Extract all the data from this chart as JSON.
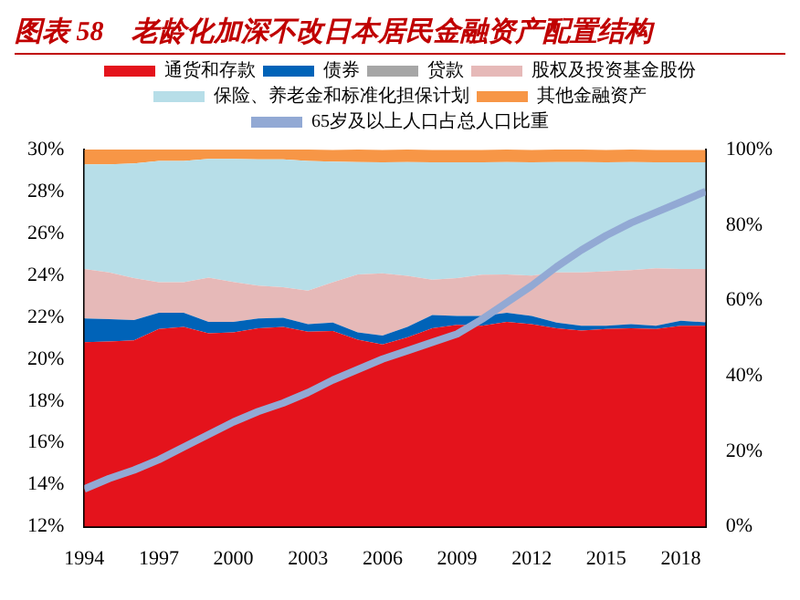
{
  "chart_data": {
    "type": "area",
    "title": "图表 58　老龄化加深不改日本居民金融资产配置结构",
    "stacked": true,
    "legend": "top",
    "marker": "none",
    "x": [
      1994,
      1995,
      1996,
      1997,
      1998,
      1999,
      2000,
      2001,
      2002,
      2003,
      2004,
      2005,
      2006,
      2007,
      2008,
      2009,
      2010,
      2011,
      2012,
      2013,
      2014,
      2015,
      2016,
      2017,
      2018,
      2019
    ],
    "xlim": [
      1994,
      2019
    ],
    "xticks": [
      1994,
      1997,
      2000,
      2003,
      2006,
      2009,
      2012,
      2015,
      2018
    ],
    "ylim": [
      12,
      30
    ],
    "yticks": [
      {
        "value": 12,
        "label": "12%"
      },
      {
        "value": 14,
        "label": "14%"
      },
      {
        "value": 16,
        "label": "16%"
      },
      {
        "value": 18,
        "label": "18%"
      },
      {
        "value": 20,
        "label": "20%"
      },
      {
        "value": 22,
        "label": "22%"
      },
      {
        "value": 24,
        "label": "24%"
      },
      {
        "value": 26,
        "label": "26%"
      },
      {
        "value": 28,
        "label": "28%"
      },
      {
        "value": 30,
        "label": "30%"
      }
    ],
    "y2lim": [
      0,
      100
    ],
    "y2ticks": [
      {
        "value": 0,
        "label": "0%"
      },
      {
        "value": 20,
        "label": "20%"
      },
      {
        "value": 40,
        "label": "40%"
      },
      {
        "value": 60,
        "label": "60%"
      },
      {
        "value": 80,
        "label": "80%"
      },
      {
        "value": 100,
        "label": "100%"
      }
    ],
    "series": [
      {
        "name": "通货和存款",
        "color": "#e4131c",
        "axis": "y2",
        "values": [
          48.9,
          49.1,
          49.4,
          52.4,
          53.0,
          51.3,
          51.5,
          52.6,
          53.0,
          51.7,
          51.9,
          49.6,
          48.3,
          50.2,
          52.6,
          53.5,
          53.3,
          54.3,
          53.7,
          52.6,
          52.0,
          52.4,
          52.6,
          52.4,
          53.3,
          53.3
        ]
      },
      {
        "name": "债券",
        "color": "#0063b8",
        "axis": "y2",
        "values": [
          6.3,
          5.9,
          5.4,
          4.3,
          3.7,
          3.0,
          2.8,
          2.6,
          2.4,
          2.0,
          2.2,
          1.9,
          2.4,
          2.8,
          3.5,
          2.4,
          2.6,
          2.4,
          2.2,
          1.5,
          1.3,
          0.9,
          1.1,
          0.9,
          1.3,
          0.9
        ]
      },
      {
        "name": "贷款",
        "color": "#a6a6a6",
        "axis": "y2",
        "values": [
          null,
          null,
          null,
          null,
          null,
          null,
          null,
          null,
          null,
          null,
          null,
          null,
          null,
          null,
          null,
          null,
          null,
          null,
          null,
          null,
          null,
          null,
          null,
          null,
          null,
          null
        ]
      },
      {
        "name": "股权及投资基金股份",
        "color": "#e6b9b8",
        "axis": "y2",
        "values": [
          13.1,
          12.4,
          11.1,
          8.1,
          8.1,
          11.7,
          10.6,
          8.7,
          8.1,
          8.9,
          10.7,
          15.4,
          16.5,
          13.5,
          9.4,
          10.0,
          10.9,
          10.2,
          10.7,
          13.3,
          14.1,
          14.4,
          14.3,
          15.2,
          13.7,
          14.1
        ]
      },
      {
        "name": "保险、养老金和标准化担保计划",
        "color": "#b7dee8",
        "axis": "y2",
        "values": [
          27.8,
          28.7,
          30.4,
          32.2,
          32.2,
          31.5,
          32.6,
          33.5,
          33.9,
          34.4,
          32.0,
          29.8,
          29.4,
          30.2,
          31.1,
          30.7,
          29.8,
          29.8,
          30.0,
          29.3,
          29.3,
          28.9,
          28.7,
          28.1,
          28.3,
          28.3
        ]
      },
      {
        "name": "其他金融资产",
        "color": "#f79646",
        "axis": "y2",
        "values": [
          3.9,
          3.9,
          3.7,
          3.0,
          3.0,
          2.6,
          2.6,
          2.6,
          2.6,
          3.0,
          3.1,
          3.3,
          3.3,
          3.3,
          3.3,
          3.3,
          3.3,
          3.3,
          3.3,
          3.3,
          3.3,
          3.3,
          3.3,
          3.3,
          3.3,
          3.3
        ]
      },
      {
        "name": "65岁及以上人口占总人口比重",
        "type": "line",
        "color": "#92a9d4",
        "axis": "y",
        "values": [
          13.8,
          14.3,
          14.7,
          15.2,
          15.8,
          16.4,
          17.0,
          17.5,
          17.9,
          18.4,
          19.0,
          19.5,
          20.0,
          20.4,
          20.8,
          21.2,
          21.9,
          22.7,
          23.5,
          24.4,
          25.2,
          25.9,
          26.5,
          27.0,
          27.5,
          28.0
        ]
      }
    ]
  }
}
